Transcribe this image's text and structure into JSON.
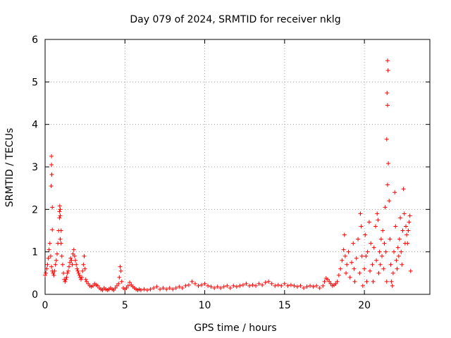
{
  "chart_data": {
    "type": "scatter",
    "title": "Day 079 of 2024, SRMTID for receiver nklg",
    "xlabel": "GPS time / hours",
    "ylabel": "SRMTID / TECUs",
    "xlim": [
      0,
      24.1
    ],
    "ylim": [
      0,
      6
    ],
    "x_ticks": [
      0,
      5,
      10,
      15,
      20
    ],
    "y_ticks": [
      0,
      1,
      2,
      3,
      4,
      5,
      6
    ],
    "grid": true,
    "marker": "+",
    "series_color": "#ff0000",
    "series": [
      {
        "name": "SRMTID",
        "points": [
          [
            0.0,
            0.45
          ],
          [
            0.05,
            0.5
          ],
          [
            0.1,
            0.6
          ],
          [
            0.15,
            0.7
          ],
          [
            0.2,
            0.85
          ],
          [
            0.25,
            1.05
          ],
          [
            0.3,
            1.2
          ],
          [
            0.35,
            0.9
          ],
          [
            0.4,
            0.65
          ],
          [
            0.45,
            0.55
          ],
          [
            0.4,
            3.25
          ],
          [
            0.4,
            3.05
          ],
          [
            0.42,
            2.82
          ],
          [
            0.38,
            2.55
          ],
          [
            0.45,
            2.05
          ],
          [
            0.45,
            1.52
          ],
          [
            0.5,
            0.5
          ],
          [
            0.55,
            0.45
          ],
          [
            0.6,
            0.55
          ],
          [
            0.65,
            0.7
          ],
          [
            0.7,
            0.8
          ],
          [
            0.75,
            0.95
          ],
          [
            0.8,
            1.2
          ],
          [
            0.85,
            1.5
          ],
          [
            0.9,
            1.8
          ],
          [
            0.95,
            2.0
          ],
          [
            0.92,
            2.08
          ],
          [
            0.9,
            1.95
          ],
          [
            0.95,
            1.85
          ],
          [
            1.0,
            1.5
          ],
          [
            1.0,
            1.2
          ],
          [
            0.95,
            1.3
          ],
          [
            1.05,
            0.9
          ],
          [
            1.1,
            0.7
          ],
          [
            1.15,
            0.5
          ],
          [
            1.2,
            0.35
          ],
          [
            1.25,
            0.3
          ],
          [
            1.3,
            0.35
          ],
          [
            1.35,
            0.4
          ],
          [
            1.4,
            0.5
          ],
          [
            1.45,
            0.55
          ],
          [
            1.5,
            0.65
          ],
          [
            1.55,
            0.75
          ],
          [
            1.6,
            0.85
          ],
          [
            1.65,
            0.8
          ],
          [
            1.7,
            0.7
          ],
          [
            1.75,
            0.95
          ],
          [
            1.8,
            1.05
          ],
          [
            1.85,
            0.9
          ],
          [
            1.9,
            0.8
          ],
          [
            1.95,
            0.7
          ],
          [
            2.0,
            0.6
          ],
          [
            2.05,
            0.55
          ],
          [
            2.1,
            0.5
          ],
          [
            2.15,
            0.45
          ],
          [
            2.2,
            0.4
          ],
          [
            2.25,
            0.35
          ],
          [
            2.3,
            0.4
          ],
          [
            2.35,
            0.55
          ],
          [
            2.4,
            0.7
          ],
          [
            2.45,
            0.9
          ],
          [
            2.5,
            0.6
          ],
          [
            2.55,
            0.35
          ],
          [
            2.6,
            0.3
          ],
          [
            2.7,
            0.25
          ],
          [
            2.8,
            0.2
          ],
          [
            2.9,
            0.18
          ],
          [
            3.0,
            0.2
          ],
          [
            3.1,
            0.25
          ],
          [
            3.2,
            0.22
          ],
          [
            3.3,
            0.2
          ],
          [
            3.4,
            0.15
          ],
          [
            3.5,
            0.12
          ],
          [
            3.6,
            0.1
          ],
          [
            3.7,
            0.15
          ],
          [
            3.8,
            0.12
          ],
          [
            3.9,
            0.1
          ],
          [
            4.0,
            0.12
          ],
          [
            4.1,
            0.15
          ],
          [
            4.2,
            0.12
          ],
          [
            4.3,
            0.1
          ],
          [
            4.4,
            0.15
          ],
          [
            4.5,
            0.2
          ],
          [
            4.6,
            0.25
          ],
          [
            4.65,
            0.4
          ],
          [
            4.7,
            0.65
          ],
          [
            4.75,
            0.55
          ],
          [
            4.8,
            0.3
          ],
          [
            4.9,
            0.15
          ],
          [
            5.0,
            0.12
          ],
          [
            5.1,
            0.15
          ],
          [
            5.2,
            0.2
          ],
          [
            5.3,
            0.28
          ],
          [
            5.4,
            0.22
          ],
          [
            5.5,
            0.18
          ],
          [
            5.6,
            0.15
          ],
          [
            5.7,
            0.12
          ],
          [
            5.8,
            0.1
          ],
          [
            5.9,
            0.12
          ],
          [
            6.0,
            0.1
          ],
          [
            6.2,
            0.12
          ],
          [
            6.4,
            0.1
          ],
          [
            6.6,
            0.12
          ],
          [
            6.8,
            0.15
          ],
          [
            7.0,
            0.18
          ],
          [
            7.2,
            0.12
          ],
          [
            7.4,
            0.15
          ],
          [
            7.6,
            0.12
          ],
          [
            7.8,
            0.15
          ],
          [
            8.0,
            0.12
          ],
          [
            8.2,
            0.15
          ],
          [
            8.4,
            0.18
          ],
          [
            8.6,
            0.15
          ],
          [
            8.8,
            0.2
          ],
          [
            9.0,
            0.22
          ],
          [
            9.2,
            0.3
          ],
          [
            9.4,
            0.25
          ],
          [
            9.6,
            0.2
          ],
          [
            9.8,
            0.22
          ],
          [
            10.0,
            0.25
          ],
          [
            10.2,
            0.2
          ],
          [
            10.4,
            0.18
          ],
          [
            10.6,
            0.15
          ],
          [
            10.8,
            0.18
          ],
          [
            11.0,
            0.15
          ],
          [
            11.2,
            0.18
          ],
          [
            11.4,
            0.2
          ],
          [
            11.6,
            0.15
          ],
          [
            11.8,
            0.2
          ],
          [
            12.0,
            0.18
          ],
          [
            12.2,
            0.2
          ],
          [
            12.4,
            0.22
          ],
          [
            12.6,
            0.25
          ],
          [
            12.8,
            0.2
          ],
          [
            13.0,
            0.22
          ],
          [
            13.2,
            0.2
          ],
          [
            13.4,
            0.25
          ],
          [
            13.6,
            0.22
          ],
          [
            13.8,
            0.28
          ],
          [
            14.0,
            0.3
          ],
          [
            14.2,
            0.25
          ],
          [
            14.4,
            0.2
          ],
          [
            14.6,
            0.22
          ],
          [
            14.8,
            0.2
          ],
          [
            15.0,
            0.25
          ],
          [
            15.2,
            0.2
          ],
          [
            15.4,
            0.22
          ],
          [
            15.6,
            0.2
          ],
          [
            15.8,
            0.18
          ],
          [
            16.0,
            0.2
          ],
          [
            16.2,
            0.15
          ],
          [
            16.4,
            0.18
          ],
          [
            16.6,
            0.2
          ],
          [
            16.8,
            0.18
          ],
          [
            17.0,
            0.2
          ],
          [
            17.2,
            0.15
          ],
          [
            17.4,
            0.2
          ],
          [
            17.5,
            0.3
          ],
          [
            17.6,
            0.38
          ],
          [
            17.7,
            0.35
          ],
          [
            17.8,
            0.3
          ],
          [
            17.9,
            0.25
          ],
          [
            18.0,
            0.2
          ],
          [
            18.1,
            0.22
          ],
          [
            18.2,
            0.25
          ],
          [
            18.3,
            0.3
          ],
          [
            18.4,
            0.45
          ],
          [
            18.5,
            0.6
          ],
          [
            18.6,
            0.8
          ],
          [
            18.7,
            1.05
          ],
          [
            18.75,
            1.4
          ],
          [
            18.8,
            0.9
          ],
          [
            18.85,
            0.5
          ],
          [
            18.9,
            0.7
          ],
          [
            19.0,
            1.0
          ],
          [
            19.1,
            0.4
          ],
          [
            19.2,
            0.75
          ],
          [
            19.3,
            1.2
          ],
          [
            19.35,
            0.6
          ],
          [
            19.4,
            0.3
          ],
          [
            19.5,
            0.85
          ],
          [
            19.6,
            1.3
          ],
          [
            19.7,
            0.5
          ],
          [
            19.75,
            1.9
          ],
          [
            19.8,
            1.6
          ],
          [
            19.85,
            0.9
          ],
          [
            19.9,
            0.2
          ],
          [
            20.0,
            0.6
          ],
          [
            20.05,
            1.4
          ],
          [
            20.1,
            0.9
          ],
          [
            20.15,
            0.3
          ],
          [
            20.2,
            1.0
          ],
          [
            20.3,
            1.7
          ],
          [
            20.35,
            0.55
          ],
          [
            20.4,
            1.2
          ],
          [
            20.5,
            0.7
          ],
          [
            20.55,
            0.3
          ],
          [
            20.6,
            1.1
          ],
          [
            20.7,
            1.6
          ],
          [
            20.75,
            0.8
          ],
          [
            20.8,
            1.9
          ],
          [
            20.85,
            1.75
          ],
          [
            20.9,
            0.5
          ],
          [
            20.95,
            1.0
          ],
          [
            21.0,
            0.7
          ],
          [
            21.05,
            1.3
          ],
          [
            21.1,
            0.9
          ],
          [
            21.15,
            1.5
          ],
          [
            21.2,
            0.6
          ],
          [
            21.25,
            1.2
          ],
          [
            21.3,
            2.05
          ],
          [
            21.35,
            1.0
          ],
          [
            21.4,
            0.3
          ],
          [
            21.45,
            5.5
          ],
          [
            21.48,
            5.27
          ],
          [
            21.42,
            4.74
          ],
          [
            21.45,
            4.45
          ],
          [
            21.4,
            3.65
          ],
          [
            21.5,
            3.08
          ],
          [
            21.45,
            2.58
          ],
          [
            21.55,
            2.2
          ],
          [
            21.6,
            1.3
          ],
          [
            21.65,
            0.7
          ],
          [
            21.7,
            0.3
          ],
          [
            21.75,
            0.2
          ],
          [
            21.8,
            0.5
          ],
          [
            21.85,
            1.0
          ],
          [
            21.9,
            2.4
          ],
          [
            21.95,
            1.6
          ],
          [
            22.0,
            0.8
          ],
          [
            22.05,
            0.6
          ],
          [
            22.1,
            1.1
          ],
          [
            22.15,
            0.9
          ],
          [
            22.2,
            1.3
          ],
          [
            22.25,
            1.8
          ],
          [
            22.3,
            1.0
          ],
          [
            22.35,
            0.7
          ],
          [
            22.4,
            1.5
          ],
          [
            22.45,
            2.48
          ],
          [
            22.5,
            1.9
          ],
          [
            22.55,
            1.2
          ],
          [
            22.6,
            1.6
          ],
          [
            22.65,
            1.4
          ],
          [
            22.7,
            1.2
          ],
          [
            22.75,
            1.5
          ],
          [
            22.8,
            1.7
          ],
          [
            22.85,
            1.85
          ],
          [
            22.9,
            0.55
          ]
        ]
      }
    ]
  }
}
